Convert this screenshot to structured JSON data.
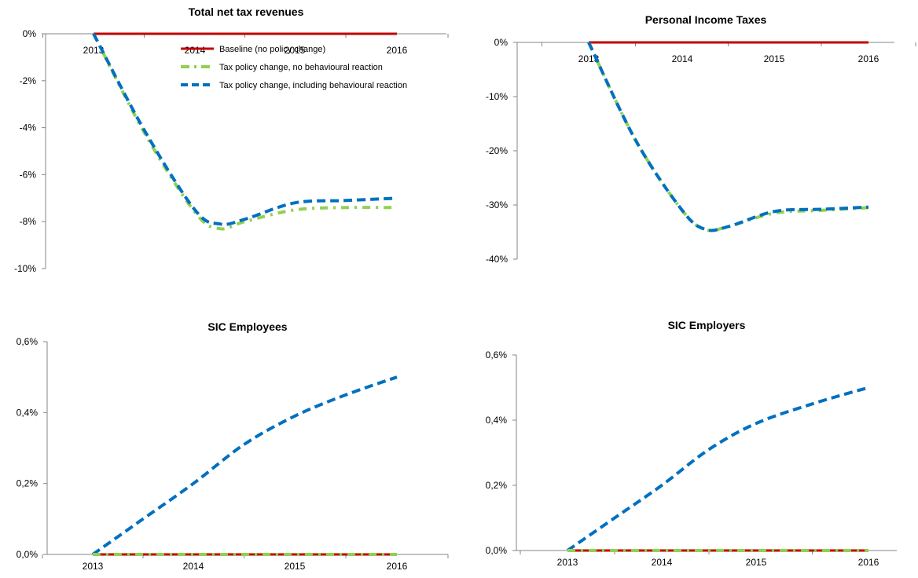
{
  "colors": {
    "baseline": "#c00000",
    "no_reaction": "#92d050",
    "with_reaction": "#0070c0"
  },
  "legend": {
    "baseline": "Baseline (no policy change)",
    "no_reaction": "Tax policy change, no behavioural reaction",
    "with_reaction": "Tax policy change, including behavioural reaction"
  },
  "chart_data": [
    {
      "type": "line",
      "title": "Total net tax revenues",
      "x": [
        2013,
        2013.5,
        2014,
        2014.25,
        2014.5,
        2015,
        2015.5,
        2016
      ],
      "xticks": [
        "2013",
        "2014",
        "2015",
        "2016"
      ],
      "yticks": [
        "0%",
        "-2%",
        "-4%",
        "-6%",
        "-8%",
        "-10%"
      ],
      "ylim": [
        -10,
        0
      ],
      "xaxis_at": 0,
      "legend_position": "top-right",
      "series": [
        {
          "key": "baseline",
          "name": "Baseline (no policy change)",
          "values": [
            0,
            0,
            0,
            0,
            0,
            0,
            0,
            0
          ]
        },
        {
          "key": "no_reaction",
          "name": "Tax policy change, no behavioural reaction",
          "values": [
            0,
            -4.2,
            -7.6,
            -8.3,
            -8.0,
            -7.5,
            -7.4,
            -7.4
          ]
        },
        {
          "key": "with_reaction",
          "name": "Tax policy change, including behavioural reaction",
          "values": [
            0,
            -4.1,
            -7.5,
            -8.1,
            -7.9,
            -7.2,
            -7.1,
            -7.0
          ]
        }
      ]
    },
    {
      "type": "line",
      "title": "Personal Income Taxes",
      "x": [
        2013,
        2013.5,
        2014,
        2014.25,
        2014.5,
        2015,
        2015.5,
        2016
      ],
      "xticks": [
        "2013",
        "2014",
        "2015",
        "2016"
      ],
      "yticks": [
        "0%",
        "-10%",
        "-20%",
        "-30%",
        "-40%"
      ],
      "ylim": [
        -40,
        0
      ],
      "xaxis_at": 0,
      "series": [
        {
          "key": "baseline",
          "name": "Baseline (no policy change)",
          "values": [
            0,
            0,
            0,
            0,
            0,
            0,
            0,
            0
          ]
        },
        {
          "key": "no_reaction",
          "name": "Tax policy change, no behavioural reaction",
          "values": [
            0,
            -18,
            -31,
            -34.5,
            -34,
            -31.5,
            -31,
            -30.5
          ]
        },
        {
          "key": "with_reaction",
          "name": "Tax policy change, including behavioural reaction",
          "values": [
            0,
            -18,
            -31,
            -34.5,
            -34,
            -31.2,
            -30.8,
            -30.4
          ]
        }
      ]
    },
    {
      "type": "line",
      "title": "SIC Employees",
      "x": [
        2013,
        2013.5,
        2014,
        2014.5,
        2015,
        2015.5,
        2016
      ],
      "xticks": [
        "2013",
        "2014",
        "2015",
        "2016"
      ],
      "yticks": [
        "0,0%",
        "0,2%",
        "0,4%",
        "0,6%"
      ],
      "ylim": [
        0,
        0.6
      ],
      "xaxis_at": 0,
      "series": [
        {
          "key": "baseline",
          "name": "Baseline (no policy change)",
          "values": [
            0,
            0,
            0,
            0,
            0,
            0,
            0
          ]
        },
        {
          "key": "no_reaction",
          "name": "Tax policy change, no behavioural reaction",
          "values": [
            0,
            0,
            0,
            0,
            0,
            0,
            0
          ]
        },
        {
          "key": "with_reaction",
          "name": "Tax policy change, including behavioural reaction",
          "values": [
            0,
            0.1,
            0.2,
            0.31,
            0.39,
            0.45,
            0.5
          ]
        }
      ]
    },
    {
      "type": "line",
      "title": "SIC Employers",
      "x": [
        2013,
        2013.5,
        2014,
        2014.5,
        2015,
        2015.5,
        2016
      ],
      "xticks": [
        "2013",
        "2014",
        "2015",
        "2016"
      ],
      "yticks": [
        "0,0%",
        "0,2%",
        "0,4%",
        "0,6%"
      ],
      "ylim": [
        0,
        0.6
      ],
      "xaxis_at": 0,
      "series": [
        {
          "key": "baseline",
          "name": "Baseline (no policy change)",
          "values": [
            0,
            0,
            0,
            0,
            0,
            0,
            0
          ]
        },
        {
          "key": "no_reaction",
          "name": "Tax policy change, no behavioural reaction",
          "values": [
            0,
            0,
            0,
            0,
            0,
            0,
            0
          ]
        },
        {
          "key": "with_reaction",
          "name": "Tax policy change, including behavioural reaction",
          "values": [
            0,
            0.1,
            0.2,
            0.31,
            0.39,
            0.45,
            0.5
          ]
        }
      ]
    }
  ]
}
